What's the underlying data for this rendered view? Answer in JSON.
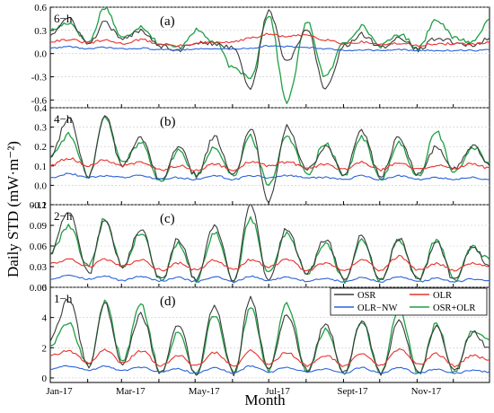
{
  "figure": {
    "ylabel": "Daily STD (mW·m⁻²)",
    "xlabel": "Month",
    "months": [
      "Jan-17",
      "Mar-17",
      "May-17",
      "Jul-17",
      "Sept-17",
      "Nov-17"
    ],
    "colors": {
      "OSR": "#3a3a3a",
      "OLR": "#e8322d",
      "OLR-NW": "#2a63d8",
      "OSR+OLR": "#1fa044"
    },
    "legend": [
      {
        "key": "OSR",
        "label": "OSR"
      },
      {
        "key": "OLR",
        "label": "OLR"
      },
      {
        "key": "OLR-NW",
        "label": "OLR−NW"
      },
      {
        "key": "OSR+OLR",
        "label": "OSR+OLR"
      }
    ]
  },
  "chart_data": [
    {
      "type": "line",
      "panel": "(a)",
      "interval": "6−h",
      "ylim": [
        -0.7,
        0.6
      ],
      "yticks": [
        "0.6",
        "0.3",
        "0.0",
        "-0.3",
        "-0.6"
      ],
      "ytick_values": [
        0.6,
        0.3,
        0.0,
        -0.3,
        -0.6
      ],
      "grid": true,
      "x": [
        0,
        15,
        32,
        45,
        60,
        75,
        92,
        106,
        121,
        136,
        152,
        166,
        181,
        196,
        213,
        228,
        244,
        258,
        274,
        289,
        305,
        320,
        335,
        350,
        364
      ],
      "series": [
        {
          "name": "OSR",
          "values": [
            0.25,
            0.45,
            0.12,
            0.4,
            0.18,
            0.3,
            0.1,
            0.05,
            0.15,
            0.12,
            0.08,
            -0.45,
            0.55,
            -0.1,
            0.3,
            -0.45,
            0.1,
            0.25,
            0.08,
            0.2,
            0.05,
            0.2,
            0.15,
            0.1,
            0.2
          ]
        },
        {
          "name": "OLR",
          "values": [
            0.16,
            0.18,
            0.14,
            0.17,
            0.13,
            0.18,
            0.12,
            0.1,
            0.13,
            0.14,
            0.15,
            0.2,
            0.25,
            0.22,
            0.24,
            0.18,
            0.13,
            0.15,
            0.12,
            0.13,
            0.11,
            0.12,
            0.13,
            0.12,
            0.14
          ]
        },
        {
          "name": "OLR-NW",
          "values": [
            0.07,
            0.09,
            0.06,
            0.08,
            0.06,
            0.07,
            0.05,
            0.05,
            0.06,
            0.06,
            0.06,
            0.07,
            0.1,
            0.09,
            0.08,
            0.06,
            0.04,
            0.05,
            0.04,
            0.05,
            0.04,
            0.04,
            0.04,
            0.04,
            0.05
          ]
        },
        {
          "name": "OSR+OLR",
          "values": [
            0.3,
            0.4,
            0.15,
            0.6,
            0.2,
            0.35,
            0.12,
            0.08,
            0.3,
            0.15,
            -0.2,
            -0.3,
            0.5,
            -0.62,
            0.4,
            -0.3,
            0.15,
            0.35,
            0.1,
            0.25,
            0.08,
            0.45,
            0.2,
            0.15,
            0.45
          ]
        }
      ]
    },
    {
      "type": "line",
      "panel": "(b)",
      "interval": "4−h",
      "ylim": [
        -0.1,
        0.4
      ],
      "yticks": [
        "0.4",
        "0.3",
        "0.2",
        "0.1",
        "0.0",
        "-0.1"
      ],
      "ytick_values": [
        0.4,
        0.3,
        0.2,
        0.1,
        0.0,
        -0.1
      ],
      "grid": true,
      "x": [
        0,
        15,
        32,
        45,
        60,
        75,
        92,
        106,
        121,
        136,
        152,
        166,
        181,
        196,
        213,
        228,
        244,
        258,
        274,
        289,
        305,
        320,
        335,
        350,
        364
      ],
      "series": [
        {
          "name": "OSR",
          "values": [
            0.15,
            0.35,
            0.05,
            0.36,
            0.1,
            0.25,
            0.02,
            0.2,
            0.05,
            0.25,
            0.05,
            0.3,
            -0.08,
            0.3,
            0.08,
            0.2,
            0.06,
            0.28,
            0.05,
            0.25,
            0.05,
            0.2,
            0.08,
            0.2,
            0.1
          ]
        },
        {
          "name": "OLR",
          "values": [
            0.1,
            0.14,
            0.1,
            0.13,
            0.1,
            0.12,
            0.08,
            0.1,
            0.08,
            0.11,
            0.08,
            0.12,
            0.1,
            0.12,
            0.09,
            0.11,
            0.08,
            0.12,
            0.08,
            0.12,
            0.08,
            0.1,
            0.09,
            0.11,
            0.09
          ]
        },
        {
          "name": "OLR-NW",
          "values": [
            0.04,
            0.06,
            0.04,
            0.05,
            0.04,
            0.05,
            0.03,
            0.04,
            0.03,
            0.05,
            0.03,
            0.05,
            0.04,
            0.05,
            0.04,
            0.04,
            0.03,
            0.05,
            0.03,
            0.05,
            0.03,
            0.04,
            0.03,
            0.04,
            0.03
          ]
        },
        {
          "name": "OSR+OLR",
          "values": [
            0.15,
            0.26,
            0.05,
            0.35,
            0.12,
            0.22,
            0.02,
            0.18,
            0.05,
            0.2,
            0.05,
            0.25,
            0.0,
            0.26,
            0.06,
            0.22,
            0.05,
            0.25,
            0.03,
            0.22,
            0.04,
            0.28,
            0.06,
            0.2,
            0.12
          ]
        }
      ]
    },
    {
      "type": "line",
      "panel": "(c)",
      "interval": "2−h",
      "ylim": [
        0.0,
        0.12
      ],
      "yticks": [
        "0.12",
        "0.09",
        "0.06",
        "0.03",
        "0.00"
      ],
      "ytick_values": [
        0.12,
        0.09,
        0.06,
        0.03,
        0.0
      ],
      "grid": true,
      "x": [
        0,
        15,
        32,
        45,
        60,
        75,
        92,
        106,
        121,
        136,
        152,
        166,
        181,
        196,
        213,
        228,
        244,
        258,
        274,
        289,
        305,
        320,
        335,
        350,
        364
      ],
      "series": [
        {
          "name": "OSR",
          "values": [
            0.05,
            0.11,
            0.02,
            0.1,
            0.03,
            0.085,
            0.01,
            0.07,
            0.01,
            0.09,
            0.01,
            0.12,
            0.01,
            0.085,
            0.02,
            0.07,
            0.01,
            0.075,
            0.01,
            0.07,
            0.01,
            0.065,
            0.01,
            0.06,
            0.03
          ]
        },
        {
          "name": "OLR",
          "values": [
            0.035,
            0.04,
            0.03,
            0.04,
            0.03,
            0.04,
            0.025,
            0.035,
            0.025,
            0.04,
            0.025,
            0.04,
            0.03,
            0.04,
            0.025,
            0.035,
            0.025,
            0.04,
            0.025,
            0.045,
            0.025,
            0.035,
            0.025,
            0.035,
            0.03
          ]
        },
        {
          "name": "OLR-NW",
          "values": [
            0.012,
            0.018,
            0.012,
            0.016,
            0.01,
            0.016,
            0.009,
            0.014,
            0.008,
            0.015,
            0.008,
            0.016,
            0.01,
            0.015,
            0.009,
            0.013,
            0.008,
            0.014,
            0.008,
            0.015,
            0.008,
            0.013,
            0.008,
            0.012,
            0.01
          ]
        },
        {
          "name": "OSR+OLR",
          "values": [
            0.05,
            0.09,
            0.03,
            0.1,
            0.03,
            0.08,
            0.01,
            0.065,
            0.01,
            0.08,
            0.01,
            0.1,
            0.02,
            0.08,
            0.02,
            0.065,
            0.01,
            0.07,
            0.01,
            0.07,
            0.01,
            0.07,
            0.01,
            0.06,
            0.04
          ]
        }
      ]
    },
    {
      "type": "line",
      "panel": "(d)",
      "interval": "1−h",
      "ylim": [
        -0.3,
        6.0
      ],
      "yticks": [
        "6",
        "4",
        "2",
        "0"
      ],
      "ytick_values": [
        6,
        4,
        2,
        0
      ],
      "grid": true,
      "x": [
        0,
        15,
        32,
        45,
        60,
        75,
        92,
        106,
        121,
        136,
        152,
        166,
        181,
        196,
        213,
        228,
        244,
        258,
        274,
        289,
        305,
        320,
        335,
        350,
        364
      ],
      "series": [
        {
          "name": "OSR",
          "values": [
            2.5,
            5.2,
            0.8,
            4.9,
            1.0,
            4.2,
            0.3,
            3.5,
            0.2,
            4.8,
            0.3,
            5.3,
            0.5,
            4.2,
            0.5,
            3.6,
            0.3,
            3.8,
            0.3,
            3.7,
            0.3,
            3.4,
            0.4,
            3.0,
            2.0
          ]
        },
        {
          "name": "OLR",
          "values": [
            1.5,
            1.8,
            1.0,
            1.9,
            1.0,
            1.8,
            0.8,
            1.5,
            0.8,
            1.7,
            0.8,
            1.8,
            0.9,
            1.7,
            0.8,
            1.5,
            0.8,
            1.6,
            0.8,
            1.9,
            0.9,
            1.6,
            0.8,
            1.5,
            1.2
          ]
        },
        {
          "name": "OLR-NW",
          "values": [
            0.6,
            0.8,
            0.5,
            0.8,
            0.5,
            0.7,
            0.4,
            0.6,
            0.3,
            0.7,
            0.3,
            0.8,
            0.4,
            0.7,
            0.4,
            0.6,
            0.3,
            0.7,
            0.3,
            0.7,
            0.3,
            0.6,
            0.3,
            0.5,
            0.4
          ]
        },
        {
          "name": "OSR+OLR",
          "values": [
            2.2,
            3.6,
            0.8,
            5.0,
            1.2,
            4.8,
            0.4,
            3.0,
            0.3,
            4.2,
            0.3,
            4.6,
            0.5,
            4.9,
            0.5,
            3.2,
            0.3,
            3.7,
            0.3,
            4.6,
            0.3,
            3.6,
            0.4,
            3.2,
            2.5
          ]
        }
      ]
    }
  ]
}
